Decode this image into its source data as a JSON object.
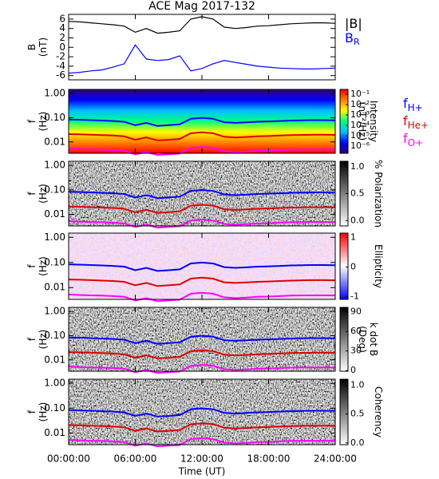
{
  "chart_data": [
    {
      "type": "line",
      "title": "ACE Mag 2017-132",
      "ylabel": [
        "B",
        "(nT)"
      ],
      "x": [
        0,
        1,
        2,
        3,
        4,
        5,
        6,
        7,
        8,
        9,
        10,
        11,
        12,
        13,
        14,
        15,
        16,
        17,
        18,
        19,
        20,
        21,
        22,
        23,
        24
      ],
      "ylim": [
        -6.9,
        7.0
      ],
      "yticks": [
        6,
        4,
        2,
        0,
        -2,
        -4,
        -6
      ],
      "series": [
        {
          "name": "|B|",
          "color": "#000000",
          "values": [
            5.5,
            5.4,
            5.2,
            5.0,
            4.8,
            4.5,
            3.2,
            4.0,
            3.0,
            3.2,
            3.5,
            6.0,
            6.5,
            6.0,
            4.3,
            4.0,
            4.2,
            4.5,
            4.6,
            4.8,
            5.0,
            5.1,
            5.2,
            5.2,
            5.1
          ]
        },
        {
          "name": "B",
          "subscript": "R",
          "color": "#0000ff",
          "values": [
            -5.5,
            -5.3,
            -5.0,
            -4.8,
            -4.2,
            -3.5,
            0.5,
            -2.5,
            -2.8,
            -2.6,
            -1.8,
            -5.0,
            -4.5,
            -3.5,
            -2.8,
            -3.2,
            -3.6,
            -4.0,
            -4.2,
            -4.4,
            -4.5,
            -4.6,
            -4.6,
            -4.5,
            -4.4
          ]
        }
      ]
    },
    {
      "type": "spectrogram",
      "ylabel": [
        "f",
        "(Hz)"
      ],
      "log_y": true,
      "ylim": [
        0.0034,
        1.47
      ],
      "yticks": [
        {
          "value": 1,
          "label": "1.00"
        },
        {
          "value": 0.1,
          "label": "0.10"
        },
        {
          "value": 0.01,
          "label": "0.01"
        }
      ],
      "background": "jet",
      "colorbar": {
        "label": [
          "Intensity",
          "(nT²/Hz)"
        ],
        "log": true,
        "lim": [
          2e-07,
          0.29
        ],
        "colors": [
          "#300070",
          "#0000ff",
          "#00c0ff",
          "#00ff80",
          "#ffff00",
          "#ff8000",
          "#ff0000"
        ],
        "ticks": [
          {
            "value": 0.1,
            "label": "10⁻¹"
          },
          {
            "value": 0.01,
            "label": "10⁻²"
          },
          {
            "value": 0.001,
            "label": "10⁻³"
          },
          {
            "value": 0.0001,
            "label": "10⁻⁴"
          },
          {
            "value": 1e-05,
            "label": "10⁻⁵"
          },
          {
            "value": 1e-06,
            "label": "10⁻⁶"
          }
        ]
      },
      "legend_symbol": "f",
      "x": [
        0,
        1,
        2,
        3,
        4,
        5,
        6,
        7,
        8,
        9,
        10,
        11,
        12,
        13,
        14,
        15,
        16,
        17,
        18,
        19,
        20,
        21,
        22,
        23,
        24
      ],
      "series": [
        {
          "name": "H+",
          "color": "#0000ff",
          "values": [
            0.084,
            0.082,
            0.079,
            0.076,
            0.073,
            0.068,
            0.049,
            0.061,
            0.046,
            0.049,
            0.053,
            0.091,
            0.099,
            0.091,
            0.065,
            0.061,
            0.064,
            0.068,
            0.07,
            0.073,
            0.076,
            0.078,
            0.079,
            0.079,
            0.078
          ]
        },
        {
          "name": "He+",
          "color": "#e00000",
          "values": [
            0.021,
            0.0205,
            0.0198,
            0.019,
            0.0183,
            0.017,
            0.0123,
            0.0153,
            0.0115,
            0.0123,
            0.0133,
            0.0228,
            0.0248,
            0.0228,
            0.0163,
            0.0153,
            0.016,
            0.017,
            0.0175,
            0.0183,
            0.019,
            0.0195,
            0.0198,
            0.0198,
            0.0195
          ]
        },
        {
          "name": "O+",
          "color": "#ff00ff",
          "values": [
            0.0053,
            0.0051,
            0.0049,
            0.0048,
            0.0046,
            0.0043,
            0.0031,
            0.0038,
            0.0029,
            0.0031,
            0.0033,
            0.0057,
            0.0062,
            0.0057,
            0.0041,
            0.0038,
            0.004,
            0.0043,
            0.0044,
            0.0046,
            0.0048,
            0.0049,
            0.0049,
            0.0049,
            0.0049
          ]
        }
      ]
    },
    {
      "type": "spectrogram",
      "ylabel": [
        "f",
        "(Hz)"
      ],
      "log_y": true,
      "ylim": [
        0.0034,
        1.47
      ],
      "yticks": [
        {
          "value": 1,
          "label": "1.00"
        },
        {
          "value": 0.1,
          "label": "0.10"
        },
        {
          "value": 0.01,
          "label": "0.01"
        }
      ],
      "background": "gray",
      "colorbar": {
        "label": [
          "% Polarization"
        ],
        "log": false,
        "lim": [
          -0.1,
          1.1
        ],
        "colors": [
          "#ffffff",
          "#000000"
        ],
        "ticks": [
          {
            "value": 1,
            "label": "1.0"
          },
          {
            "value": 0.5,
            "label": "0.5"
          },
          {
            "value": 0,
            "label": "0.0"
          }
        ]
      }
    },
    {
      "type": "spectrogram",
      "ylabel": [
        "f",
        "(Hz)"
      ],
      "log_y": true,
      "ylim": [
        0.0034,
        1.47
      ],
      "yticks": [
        {
          "value": 1,
          "label": "1.00"
        },
        {
          "value": 0.1,
          "label": "0.10"
        },
        {
          "value": 0.01,
          "label": "0.01"
        }
      ],
      "background": "redblue",
      "colorbar": {
        "label": [
          "Ellipticity"
        ],
        "log": false,
        "lim": [
          -1.1,
          1.15
        ],
        "colors": [
          "#0000ff",
          "#ffffff",
          "#ff0000"
        ],
        "ticks": [
          1,
          0,
          -1
        ]
      }
    },
    {
      "type": "spectrogram",
      "ylabel": [
        "f",
        "(Hz)"
      ],
      "log_y": true,
      "ylim": [
        0.0034,
        1.47
      ],
      "yticks": [
        {
          "value": 1,
          "label": "1.00"
        },
        {
          "value": 0.1,
          "label": "0.10"
        },
        {
          "value": 0.01,
          "label": "0.01"
        }
      ],
      "background": "gray",
      "colorbar": {
        "label": [
          "k dot B",
          "(Deg)"
        ],
        "log": false,
        "lim": [
          -1,
          97
        ],
        "colors": [
          "#ffffff",
          "#000000"
        ],
        "ticks": [
          90,
          60,
          30,
          0
        ]
      }
    },
    {
      "type": "spectrogram",
      "ylabel": [
        "f",
        "(Hz)"
      ],
      "log_y": true,
      "ylim": [
        0.0034,
        1.47
      ],
      "yticks": [
        {
          "value": 1,
          "label": "1.00"
        },
        {
          "value": 0.1,
          "label": "0.10"
        },
        {
          "value": 0.01,
          "label": "0.01"
        }
      ],
      "background": "gray",
      "colorbar": {
        "label": [
          "Coherency"
        ],
        "log": false,
        "lim": [
          -0.03,
          1.1
        ],
        "colors": [
          "#ffffff",
          "#000000"
        ],
        "ticks": [
          {
            "value": 1,
            "label": "1.0"
          },
          {
            "value": 0.5,
            "label": "0.5"
          },
          {
            "value": 0,
            "label": "0.0"
          }
        ]
      },
      "xlabel": "Time (UT)",
      "xlim": [
        0,
        24
      ],
      "xticks": [
        {
          "value": 0,
          "label": "00:00:00"
        },
        {
          "value": 6,
          "label": "06:00:00"
        },
        {
          "value": 12,
          "label": "12:00:00"
        },
        {
          "value": 18,
          "label": "18:00:00"
        },
        {
          "value": 24,
          "label": "24:00:00"
        }
      ]
    }
  ]
}
